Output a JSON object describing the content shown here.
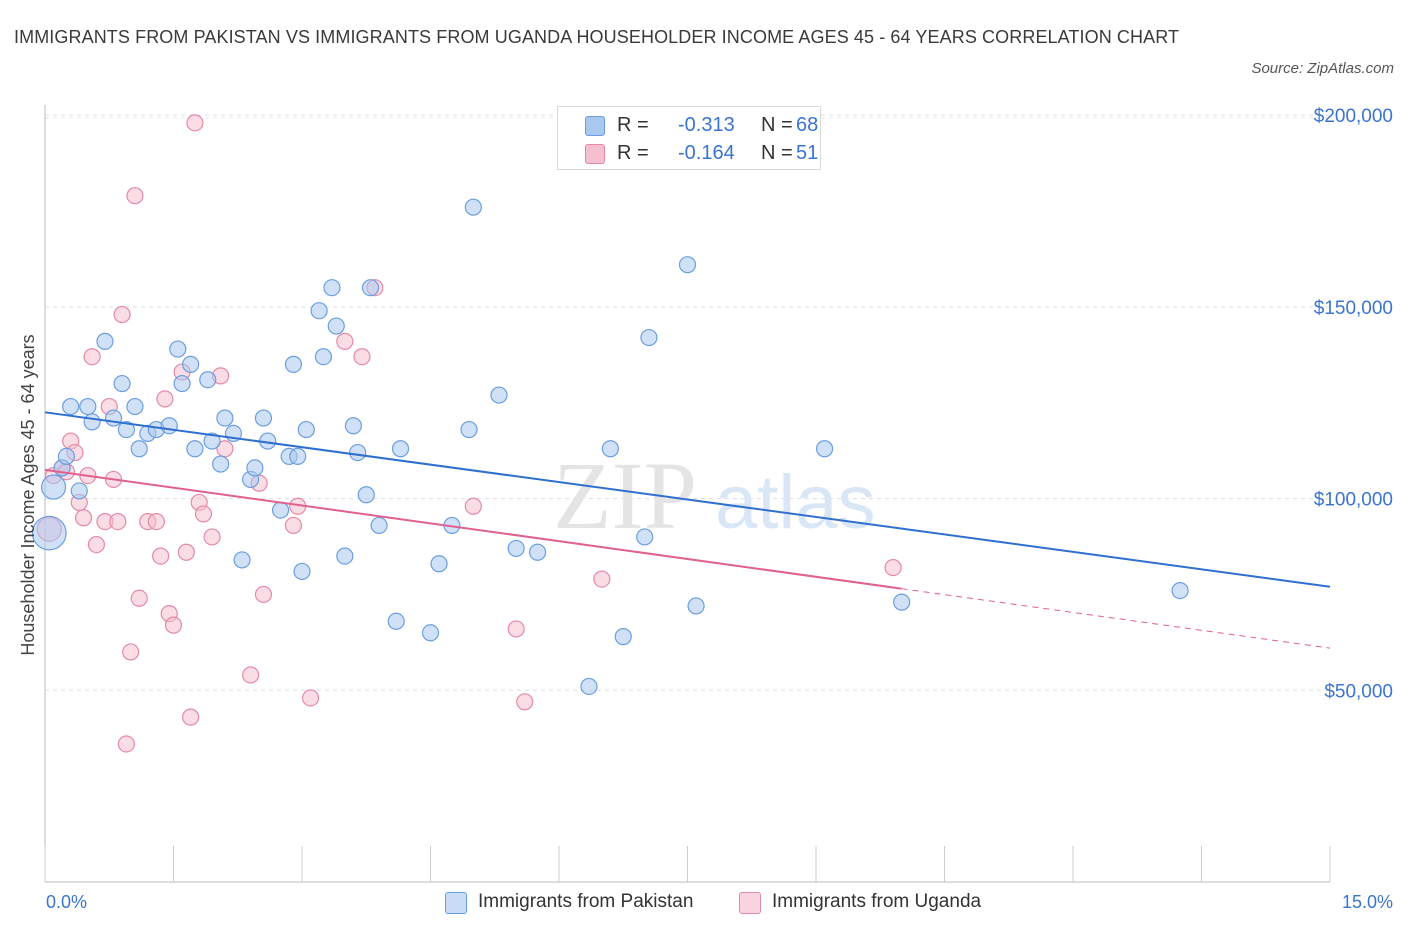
{
  "title": "IMMIGRANTS FROM PAKISTAN VS IMMIGRANTS FROM UGANDA HOUSEHOLDER INCOME AGES 45 - 64 YEARS CORRELATION CHART",
  "source": "Source: ZipAtlas.com",
  "watermark": {
    "zip": "ZIP",
    "atlas": "atlas"
  },
  "legend": {
    "rows": [
      {
        "r_label": "R =",
        "r_value": "-0.313",
        "n_label": "N =",
        "n_value": "68",
        "color": "#a9c8f0",
        "border": "#6b9ee0"
      },
      {
        "r_label": "R =",
        "r_value": "-0.164",
        "n_label": "N =",
        "n_value": "51",
        "color": "#f6bfd0",
        "border": "#e48aa6"
      }
    ]
  },
  "colors": {
    "pakistan": "#6b9ee0",
    "pakistan_fill": "#a9c8f0",
    "uganda": "#e48aa6",
    "uganda_fill": "#f6bfd0",
    "blue_line": "#2f6fd0",
    "pink_line": "#e0608f",
    "tick_label": "#3a74d0"
  },
  "chart_data": {
    "type": "scatter",
    "ylabel": "Householder Income Ages 45 - 64 years",
    "x_tick_labels": [
      "0.0%",
      "15.0%"
    ],
    "y_tick_labels": [
      "$200,000",
      "$150,000",
      "$100,000",
      "$50,000"
    ],
    "y_ticks": [
      200000,
      150000,
      100000,
      50000
    ],
    "xlim": [
      0,
      15
    ],
    "ylim": [
      0,
      205000
    ],
    "grid": true,
    "legend_position": "top-center",
    "series": [
      {
        "name": "Immigrants from Pakistan",
        "r": -0.313,
        "n": 68,
        "trend": {
          "x": [
            0.0,
            15.0
          ],
          "y": [
            122500,
            77000
          ]
        },
        "points": [
          [
            0.05,
            91000,
            3
          ],
          [
            0.1,
            103000,
            2
          ],
          [
            0.2,
            108000,
            1
          ],
          [
            0.25,
            111000,
            1
          ],
          [
            0.3,
            124000,
            1
          ],
          [
            0.4,
            102000,
            1
          ],
          [
            0.5,
            124000,
            1
          ],
          [
            0.55,
            120000,
            1
          ],
          [
            0.7,
            141000,
            1
          ],
          [
            0.8,
            121000,
            1
          ],
          [
            0.9,
            130000,
            1
          ],
          [
            0.95,
            118000,
            1
          ],
          [
            1.05,
            124000,
            1
          ],
          [
            1.1,
            113000,
            1
          ],
          [
            1.2,
            117000,
            1
          ],
          [
            1.3,
            118000,
            1
          ],
          [
            1.45,
            119000,
            1
          ],
          [
            1.55,
            139000,
            1
          ],
          [
            1.6,
            130000,
            1
          ],
          [
            1.7,
            135000,
            1
          ],
          [
            1.75,
            113000,
            1
          ],
          [
            1.9,
            131000,
            1
          ],
          [
            1.95,
            115000,
            1
          ],
          [
            2.05,
            109000,
            1
          ],
          [
            2.1,
            121000,
            1
          ],
          [
            2.2,
            117000,
            1
          ],
          [
            2.3,
            84000,
            1
          ],
          [
            2.4,
            105000,
            1
          ],
          [
            2.45,
            108000,
            1
          ],
          [
            2.55,
            121000,
            1
          ],
          [
            2.6,
            115000,
            1
          ],
          [
            2.75,
            97000,
            1
          ],
          [
            2.85,
            111000,
            1
          ],
          [
            2.9,
            135000,
            1
          ],
          [
            2.95,
            111000,
            1
          ],
          [
            3.0,
            81000,
            1
          ],
          [
            3.05,
            118000,
            1
          ],
          [
            3.2,
            149000,
            1
          ],
          [
            3.25,
            137000,
            1
          ],
          [
            3.35,
            155000,
            1
          ],
          [
            3.4,
            145000,
            1
          ],
          [
            3.5,
            85000,
            1
          ],
          [
            3.6,
            119000,
            1
          ],
          [
            3.65,
            112000,
            1
          ],
          [
            3.75,
            101000,
            1
          ],
          [
            3.8,
            155000,
            1
          ],
          [
            3.9,
            93000,
            1
          ],
          [
            4.1,
            68000,
            1
          ],
          [
            4.15,
            113000,
            1
          ],
          [
            4.5,
            65000,
            1
          ],
          [
            4.6,
            83000,
            1
          ],
          [
            4.75,
            93000,
            1
          ],
          [
            4.95,
            118000,
            1
          ],
          [
            5.0,
            176000,
            1
          ],
          [
            5.3,
            127000,
            1
          ],
          [
            5.5,
            87000,
            1
          ],
          [
            5.75,
            86000,
            1
          ],
          [
            6.35,
            51000,
            1
          ],
          [
            6.6,
            113000,
            1
          ],
          [
            6.75,
            64000,
            1
          ],
          [
            7.0,
            90000,
            1
          ],
          [
            7.05,
            142000,
            1
          ],
          [
            7.5,
            161000,
            1
          ],
          [
            7.6,
            72000,
            1
          ],
          [
            9.1,
            113000,
            1
          ],
          [
            10.0,
            73000,
            1
          ],
          [
            13.25,
            76000,
            1
          ]
        ]
      },
      {
        "name": "Immigrants from Uganda",
        "r": -0.164,
        "n": 51,
        "trend": {
          "x": [
            0.0,
            10.0
          ],
          "y": [
            107500,
            76500
          ]
        },
        "trend_dashed": {
          "x": [
            10.0,
            15.0
          ],
          "y": [
            76500,
            61000
          ]
        },
        "points": [
          [
            0.05,
            92000,
            2
          ],
          [
            0.1,
            106000,
            1
          ],
          [
            0.2,
            108000,
            1
          ],
          [
            0.25,
            107000,
            1
          ],
          [
            0.3,
            115000,
            1
          ],
          [
            0.35,
            112000,
            1
          ],
          [
            0.4,
            99000,
            1
          ],
          [
            0.45,
            95000,
            1
          ],
          [
            0.5,
            106000,
            1
          ],
          [
            0.55,
            137000,
            1
          ],
          [
            0.6,
            88000,
            1
          ],
          [
            0.7,
            94000,
            1
          ],
          [
            0.75,
            124000,
            1
          ],
          [
            0.8,
            105000,
            1
          ],
          [
            0.85,
            94000,
            1
          ],
          [
            0.9,
            148000,
            1
          ],
          [
            0.95,
            36000,
            1
          ],
          [
            1.0,
            60000,
            1
          ],
          [
            1.05,
            179000,
            1
          ],
          [
            1.1,
            74000,
            1
          ],
          [
            1.2,
            94000,
            1
          ],
          [
            1.3,
            94000,
            1
          ],
          [
            1.35,
            85000,
            1
          ],
          [
            1.4,
            126000,
            1
          ],
          [
            1.45,
            70000,
            1
          ],
          [
            1.5,
            67000,
            1
          ],
          [
            1.6,
            133000,
            1
          ],
          [
            1.65,
            86000,
            1
          ],
          [
            1.7,
            43000,
            1
          ],
          [
            1.75,
            198000,
            1
          ],
          [
            1.8,
            99000,
            1
          ],
          [
            1.85,
            96000,
            1
          ],
          [
            1.95,
            90000,
            1
          ],
          [
            2.05,
            132000,
            1
          ],
          [
            2.1,
            113000,
            1
          ],
          [
            2.4,
            54000,
            1
          ],
          [
            2.5,
            104000,
            1
          ],
          [
            2.55,
            75000,
            1
          ],
          [
            2.9,
            93000,
            1
          ],
          [
            2.95,
            98000,
            1
          ],
          [
            3.1,
            48000,
            1
          ],
          [
            3.5,
            141000,
            1
          ],
          [
            3.7,
            137000,
            1
          ],
          [
            3.85,
            155000,
            1
          ],
          [
            5.0,
            98000,
            1
          ],
          [
            5.5,
            66000,
            1
          ],
          [
            5.6,
            47000,
            1
          ],
          [
            6.5,
            79000,
            1
          ],
          [
            9.9,
            82000,
            1
          ]
        ]
      }
    ]
  }
}
